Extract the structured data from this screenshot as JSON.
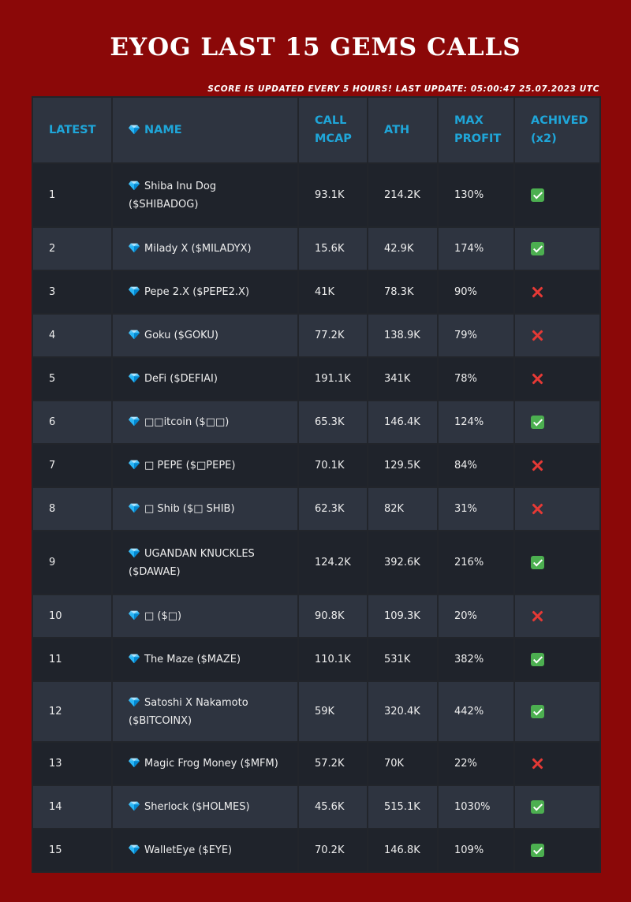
{
  "title": "EYOG LAST 15 GEMS CALLS",
  "update_note": "SCORE IS UPDATED EVERY 5 HOURS! LAST UPDATE: 05:00:47 25.07.2023 UTC",
  "columns": [
    "LATEST",
    "NAME",
    "CALL MCAP",
    "ATH",
    "MAX PROFIT",
    "ACHIVED (x2)"
  ],
  "rows": [
    {
      "latest": "1",
      "name": "Shiba Inu Dog ($SHIBADOG)",
      "call_mcap": "93.1K",
      "ath": "214.2K",
      "max_profit": "130%",
      "achieved": "yes"
    },
    {
      "latest": "2",
      "name": "Milady X ($MILADYX)",
      "call_mcap": "15.6K",
      "ath": "42.9K",
      "max_profit": "174%",
      "achieved": "yes"
    },
    {
      "latest": "3",
      "name": "Pepe 2.X ($PEPE2.X)",
      "call_mcap": "41K",
      "ath": "78.3K",
      "max_profit": "90%",
      "achieved": "no"
    },
    {
      "latest": "4",
      "name": "Goku ($GOKU)",
      "call_mcap": "77.2K",
      "ath": "138.9K",
      "max_profit": "79%",
      "achieved": "no"
    },
    {
      "latest": "5",
      "name": "DeFi ($DEFIAI)",
      "call_mcap": "191.1K",
      "ath": "341K",
      "max_profit": "78%",
      "achieved": "no"
    },
    {
      "latest": "6",
      "name": "□□itcoin ($□□)",
      "call_mcap": "65.3K",
      "ath": "146.4K",
      "max_profit": "124%",
      "achieved": "yes"
    },
    {
      "latest": "7",
      "name": "□ PEPE ($□PEPE)",
      "call_mcap": "70.1K",
      "ath": "129.5K",
      "max_profit": "84%",
      "achieved": "no"
    },
    {
      "latest": "8",
      "name": "□ Shib ($□ SHIB)",
      "call_mcap": "62.3K",
      "ath": "82K",
      "max_profit": "31%",
      "achieved": "no"
    },
    {
      "latest": "9",
      "name": "UGANDAN KNUCKLES ($DAWAE)",
      "call_mcap": "124.2K",
      "ath": "392.6K",
      "max_profit": "216%",
      "achieved": "yes"
    },
    {
      "latest": "10",
      "name": "□ ($□)",
      "call_mcap": "90.8K",
      "ath": "109.3K",
      "max_profit": "20%",
      "achieved": "no"
    },
    {
      "latest": "11",
      "name": "The Maze ($MAZE)",
      "call_mcap": "110.1K",
      "ath": "531K",
      "max_profit": "382%",
      "achieved": "yes"
    },
    {
      "latest": "12",
      "name": "Satoshi X Nakamoto ($BITCOINX)",
      "call_mcap": "59K",
      "ath": "320.4K",
      "max_profit": "442%",
      "achieved": "yes"
    },
    {
      "latest": "13",
      "name": "Magic Frog Money ($MFM)",
      "call_mcap": "57.2K",
      "ath": "70K",
      "max_profit": "22%",
      "achieved": "no"
    },
    {
      "latest": "14",
      "name": "Sherlock ($HOLMES)",
      "call_mcap": "45.6K",
      "ath": "515.1K",
      "max_profit": "1030%",
      "achieved": "yes"
    },
    {
      "latest": "15",
      "name": "WalletEye ($EYE)",
      "call_mcap": "70.2K",
      "ath": "146.8K",
      "max_profit": "109%",
      "achieved": "yes"
    }
  ],
  "icons": {
    "gem": "gem-icon",
    "achieved_yes": "check-mark-icon",
    "achieved_no": "cross-mark-icon"
  },
  "colors": {
    "background": "#8b0808",
    "header_text": "#1fa6d9",
    "row_dark": "#1f232b",
    "row_light": "#2e3440",
    "check_green": "#4caf50",
    "cross_red": "#e53935"
  }
}
